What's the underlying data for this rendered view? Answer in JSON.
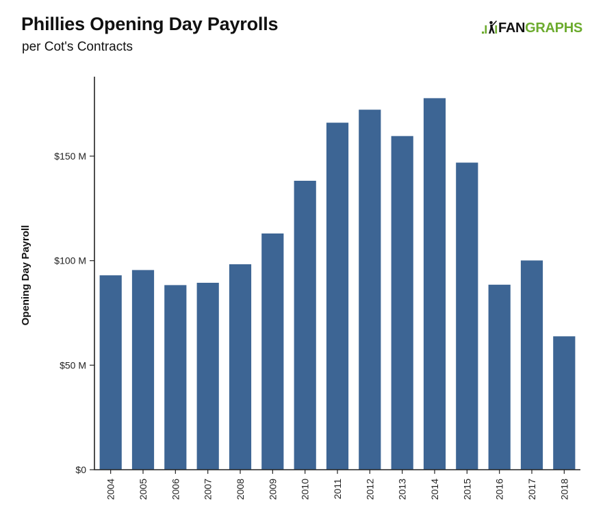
{
  "header": {
    "title": "Phillies Opening Day Payrolls",
    "subtitle": "per Cot's Contracts"
  },
  "brand": {
    "logo_fan": "FAN",
    "logo_graphs": "GRAPHS",
    "logo_fan_color": "#111111",
    "logo_graphs_color": "#6cab2e"
  },
  "chart_data": {
    "type": "bar",
    "title": "Phillies Opening Day Payrolls",
    "subtitle": "per Cot's Contracts",
    "xlabel": "",
    "ylabel": "Opening Day Payroll",
    "categories": [
      "2004",
      "2005",
      "2006",
      "2007",
      "2008",
      "2009",
      "2010",
      "2011",
      "2012",
      "2013",
      "2014",
      "2015",
      "2016",
      "2017",
      "2018"
    ],
    "series": [
      {
        "values": [
          93,
          95.5,
          88.3,
          89.4,
          98.3,
          113.0,
          138.2,
          166.0,
          172.2,
          159.6,
          177.7,
          146.9,
          88.5,
          100.1,
          63.8
        ],
        "color": "#3d6594"
      }
    ],
    "ylim": [
      0,
      188
    ],
    "yticks": [
      0,
      50,
      100,
      150
    ],
    "ytick_labels": [
      "$0",
      "$50 M",
      "$100 M",
      "$150 M"
    ],
    "grid": false,
    "legend": "none"
  }
}
